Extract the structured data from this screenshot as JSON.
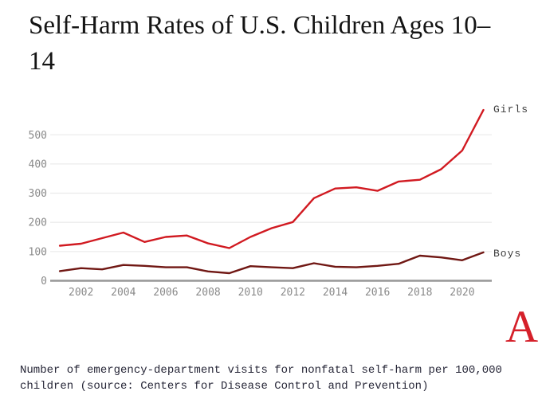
{
  "title": "Self-Harm Rates of U.S. Children Ages 10–14",
  "legend": {
    "girls": "Girls",
    "boys": "Boys"
  },
  "caption": {
    "line1": "Number of emergency-department visits for nonfatal self-harm per 100,000",
    "line2": "children (source: Centers for Disease Control and Prevention)"
  },
  "logo_letter": "A",
  "colors": {
    "girls_line": "#d11a21",
    "boys_line": "#701713",
    "gridline": "#ececec",
    "axis": "#979797",
    "tick_text": "#8a8a8a",
    "legend_text": "#3c3c3c",
    "title_text": "#141414",
    "caption_text": "#262637",
    "logo_red": "#d5202a"
  },
  "chart_data": {
    "type": "line",
    "title": "Self-Harm Rates of U.S. Children Ages 10–14",
    "xlabel": "",
    "ylabel": "",
    "x": [
      2001,
      2002,
      2003,
      2004,
      2005,
      2006,
      2007,
      2008,
      2009,
      2010,
      2011,
      2012,
      2013,
      2014,
      2015,
      2016,
      2017,
      2018,
      2019,
      2020,
      2021
    ],
    "series": [
      {
        "name": "Girls",
        "color_key": "girls_line",
        "values": [
          120,
          127,
          146,
          165,
          133,
          150,
          155,
          128,
          112,
          150,
          180,
          201,
          283,
          316,
          320,
          308,
          340,
          346,
          382,
          446,
          585
        ]
      },
      {
        "name": "Boys",
        "color_key": "boys_line",
        "values": [
          33,
          43,
          39,
          54,
          51,
          46,
          46,
          32,
          26,
          50,
          46,
          43,
          60,
          48,
          46,
          51,
          58,
          86,
          80,
          70,
          97
        ]
      }
    ],
    "ylim": [
      0,
      600
    ],
    "yticks": [
      0,
      100,
      200,
      300,
      400,
      500
    ],
    "xticks": [
      2002,
      2004,
      2006,
      2008,
      2010,
      2012,
      2014,
      2016,
      2018,
      2020
    ],
    "grid": "horizontal",
    "legend_position": "right-of-line-ends"
  }
}
